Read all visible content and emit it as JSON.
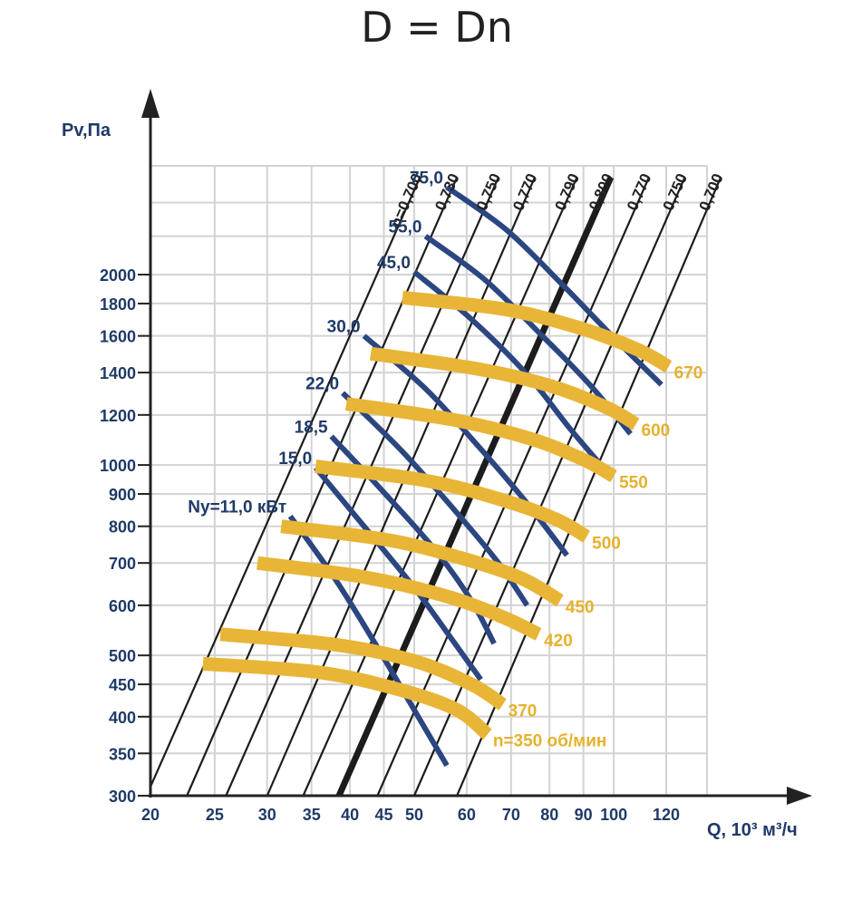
{
  "chart_data": {
    "type": "line",
    "title": "D = Dn",
    "ylabel": "Pv,Па",
    "xlabel": "Q, 10³ м³/ч",
    "x_scale": "log",
    "y_scale": "log",
    "xlim": [
      20,
      140
    ],
    "ylim": [
      300,
      2900
    ],
    "grid": true,
    "x_ticks": [
      20,
      25,
      30,
      35,
      40,
      45,
      50,
      60,
      70,
      80,
      90,
      100,
      120
    ],
    "y_ticks": [
      300,
      350,
      400,
      450,
      500,
      600,
      700,
      800,
      900,
      1000,
      1200,
      1400,
      1600,
      1800,
      2000
    ],
    "efficiency_lines": [
      {
        "label": "n=0,700",
        "start": [
          20,
          310
        ],
        "end": [
          51,
          2850
        ],
        "bold": false
      },
      {
        "label": "0,730",
        "start": [
          22.7,
          300
        ],
        "end": [
          58,
          2850
        ],
        "bold": false
      },
      {
        "label": "0,750",
        "start": [
          26,
          300
        ],
        "end": [
          67,
          2850
        ],
        "bold": false
      },
      {
        "label": "0,770",
        "start": [
          30,
          300
        ],
        "end": [
          76,
          2850
        ],
        "bold": false
      },
      {
        "label": "0,790",
        "start": [
          34,
          300
        ],
        "end": [
          88,
          2850
        ],
        "bold": false
      },
      {
        "label": "0,800",
        "start": [
          38.5,
          300
        ],
        "end": [
          99,
          2850
        ],
        "bold": true
      },
      {
        "label": "0,770",
        "start": [
          44,
          300
        ],
        "end": [
          113,
          2850
        ],
        "bold": false
      },
      {
        "label": "0,750",
        "start": [
          50,
          300
        ],
        "end": [
          128,
          2850
        ],
        "bold": false
      },
      {
        "label": "0,700",
        "start": [
          58,
          300
        ],
        "end": [
          145,
          2850
        ],
        "bold": false
      }
    ],
    "power_curves": [
      {
        "label": "Ny=11,0 кВт",
        "points": [
          [
            32.5,
            830
          ],
          [
            38,
            660
          ],
          [
            44,
            515
          ],
          [
            50,
            410
          ],
          [
            56,
            335
          ]
        ]
      },
      {
        "label": "15,0",
        "points": [
          [
            35.5,
            990
          ],
          [
            42,
            800
          ],
          [
            50,
            640
          ],
          [
            57,
            530
          ],
          [
            63,
            458
          ]
        ]
      },
      {
        "label": "18,5",
        "points": [
          [
            37.5,
            1110
          ],
          [
            45,
            905
          ],
          [
            54,
            730
          ],
          [
            61,
            610
          ],
          [
            66,
            522
          ]
        ]
      },
      {
        "label": "22,0",
        "points": [
          [
            39,
            1300
          ],
          [
            48,
            1050
          ],
          [
            58,
            840
          ],
          [
            67,
            700
          ],
          [
            74,
            600
          ]
        ]
      },
      {
        "label": "30,0",
        "points": [
          [
            42,
            1600
          ],
          [
            52,
            1320
          ],
          [
            63,
            1060
          ],
          [
            74,
            870
          ],
          [
            85,
            720
          ]
        ]
      },
      {
        "label": "45,0",
        "points": [
          [
            50,
            2020
          ],
          [
            61,
            1700
          ],
          [
            74,
            1390
          ],
          [
            86,
            1140
          ],
          [
            99,
            960
          ]
        ]
      },
      {
        "label": "55,0",
        "points": [
          [
            52,
            2300
          ],
          [
            64,
            1960
          ],
          [
            78,
            1600
          ],
          [
            92,
            1340
          ],
          [
            106,
            1120
          ]
        ]
      },
      {
        "label": "75,0",
        "points": [
          [
            56,
            2750
          ],
          [
            69,
            2350
          ],
          [
            84,
            1920
          ],
          [
            100,
            1590
          ],
          [
            118,
            1340
          ]
        ]
      }
    ],
    "speed_curves": [
      {
        "label": "n=350 об/мин",
        "points": [
          [
            24,
            485
          ],
          [
            36,
            470
          ],
          [
            48,
            440
          ],
          [
            58,
            410
          ],
          [
            64.5,
            375
          ]
        ]
      },
      {
        "label": "370",
        "points": [
          [
            25.5,
            540
          ],
          [
            38,
            520
          ],
          [
            50,
            490
          ],
          [
            61,
            450
          ],
          [
            68,
            418
          ]
        ]
      },
      {
        "label": "420",
        "points": [
          [
            29,
            700
          ],
          [
            42,
            665
          ],
          [
            56,
            620
          ],
          [
            68,
            575
          ],
          [
            77,
            540
          ]
        ]
      },
      {
        "label": "450",
        "points": [
          [
            31.5,
            800
          ],
          [
            46,
            760
          ],
          [
            61,
            705
          ],
          [
            73,
            660
          ],
          [
            83,
            610
          ]
        ]
      },
      {
        "label": "500",
        "points": [
          [
            35.5,
            995
          ],
          [
            52,
            945
          ],
          [
            68,
            880
          ],
          [
            82,
            820
          ],
          [
            91,
            770
          ]
        ]
      },
      {
        "label": "550",
        "points": [
          [
            39.5,
            1250
          ],
          [
            57,
            1180
          ],
          [
            75,
            1100
          ],
          [
            90,
            1020
          ],
          [
            100,
            960
          ]
        ]
      },
      {
        "label": "600",
        "points": [
          [
            43,
            1500
          ],
          [
            62,
            1420
          ],
          [
            81,
            1330
          ],
          [
            98,
            1230
          ],
          [
            108,
            1160
          ]
        ]
      },
      {
        "label": "670",
        "points": [
          [
            48,
            1840
          ],
          [
            69,
            1760
          ],
          [
            90,
            1640
          ],
          [
            109,
            1520
          ],
          [
            121,
            1430
          ]
        ]
      }
    ],
    "colors": {
      "grid": "#d3d3d3",
      "axis": "#222222",
      "efficiency_line": "#1c1c1c",
      "power_curve": "#2b4681",
      "speed_curve": "#e8b536",
      "axis_text": "#1f3a68",
      "speed_text": "#e6b12e"
    }
  }
}
